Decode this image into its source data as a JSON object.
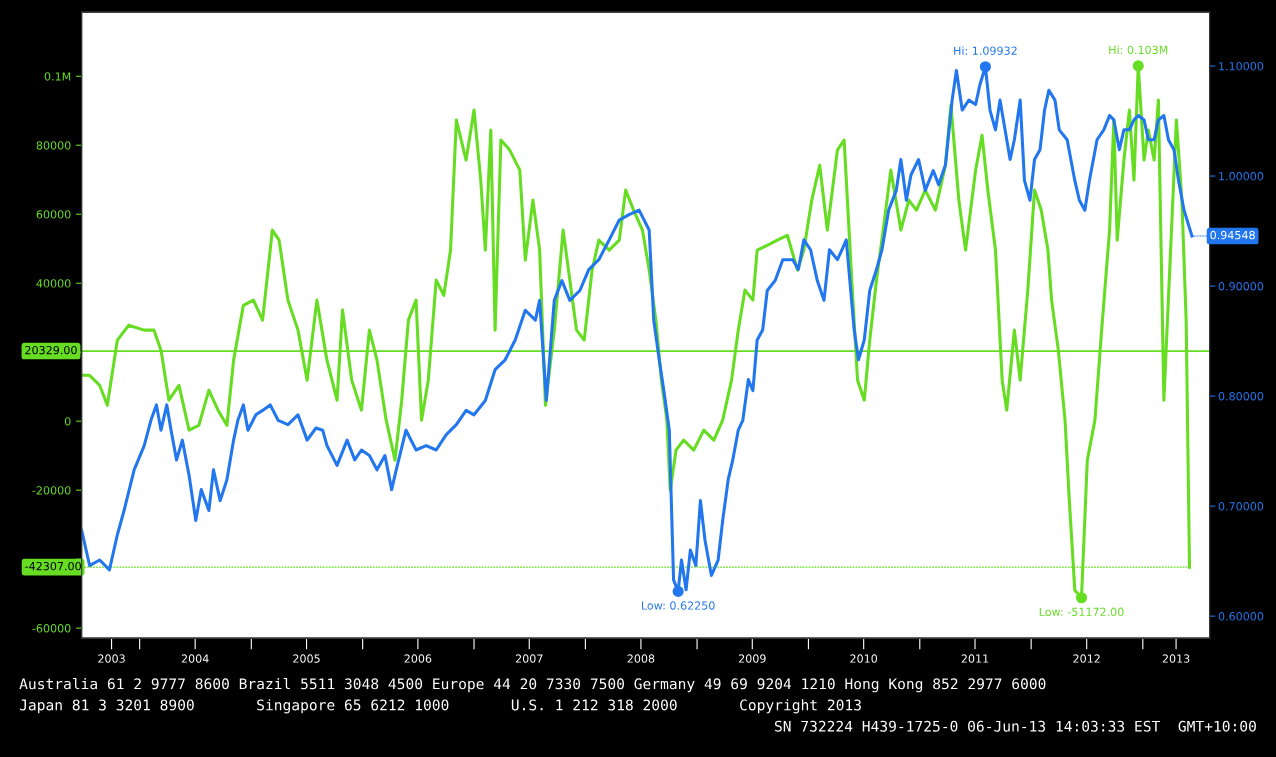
{
  "chart_data": {
    "type": "line",
    "xlim": [
      "2003-06-25",
      "2013-08-08"
    ],
    "ylim": [
      -62900,
      118600
    ],
    "y2lim": [
      0.58,
      1.149
    ],
    "xticks": [
      {
        "value": "2003-10-01",
        "label": "2003"
      },
      {
        "value": "2004-01-01",
        "label": null
      },
      {
        "value": "2004-07-01",
        "label": "2004"
      },
      {
        "value": "2005-01-01",
        "label": null
      },
      {
        "value": "2005-07-01",
        "label": "2005"
      },
      {
        "value": "2006-01-01",
        "label": null
      },
      {
        "value": "2006-07-01",
        "label": "2006"
      },
      {
        "value": "2007-01-01",
        "label": null
      },
      {
        "value": "2007-07-01",
        "label": "2007"
      },
      {
        "value": "2008-01-01",
        "label": null
      },
      {
        "value": "2008-07-01",
        "label": "2008"
      },
      {
        "value": "2009-01-01",
        "label": null
      },
      {
        "value": "2009-07-01",
        "label": "2009"
      },
      {
        "value": "2010-01-01",
        "label": null
      },
      {
        "value": "2010-07-01",
        "label": "2010"
      },
      {
        "value": "2011-01-01",
        "label": null
      },
      {
        "value": "2011-07-01",
        "label": "2011"
      },
      {
        "value": "2012-01-01",
        "label": null
      },
      {
        "value": "2012-07-01",
        "label": "2012"
      },
      {
        "value": "2013-01-01",
        "label": null
      },
      {
        "value": "2013-04-20",
        "label": "2013"
      }
    ],
    "yticks": [
      {
        "value": -60000,
        "label": "-60000"
      },
      {
        "value": -40000,
        "label": null
      },
      {
        "value": -20000,
        "label": "-20000"
      },
      0,
      {
        "value": 20000,
        "label": null
      },
      {
        "value": 40000,
        "label": "40000"
      },
      {
        "value": 60000,
        "label": "60000"
      },
      {
        "value": 80000,
        "label": "80000"
      },
      {
        "value": 100000,
        "label": "0.1M"
      }
    ],
    "y2ticks": [
      {
        "value": 0.6,
        "label": "0.60000"
      },
      {
        "value": 0.7,
        "label": "0.70000"
      },
      {
        "value": 0.8,
        "label": "0.80000"
      },
      {
        "value": 0.9,
        "label": "0.90000"
      },
      {
        "value": 1.0,
        "label": "1.00000"
      },
      {
        "value": 1.1,
        "label": "1.10000"
      }
    ],
    "series": [
      {
        "color": "#66dd22",
        "axis": "y",
        "x": [
          "2003-06-25",
          "2003-07-21",
          "2003-08-23",
          "2003-09-17",
          "2003-10-20",
          "2003-11-26",
          "2004-01-16",
          "2004-02-17",
          "2004-03-11",
          "2004-04-06",
          "2004-05-09",
          "2004-06-11",
          "2004-07-13",
          "2004-08-15",
          "2004-09-14",
          "2004-10-13",
          "2004-11-04",
          "2004-12-06",
          "2005-01-08",
          "2005-02-07",
          "2005-03-11",
          "2005-04-02",
          "2005-05-01",
          "2005-06-03",
          "2005-07-03",
          "2005-08-04",
          "2005-09-06",
          "2005-10-09",
          "2005-10-27",
          "2005-11-26",
          "2005-12-28",
          "2006-01-23",
          "2006-02-17",
          "2006-03-19",
          "2006-04-17",
          "2006-05-09",
          "2006-05-31",
          "2006-06-25",
          "2006-07-13",
          "2006-08-04",
          "2006-08-30",
          "2006-09-24",
          "2006-10-16",
          "2006-11-04",
          "2006-12-06",
          "2007-01-01",
          "2007-01-23",
          "2007-02-07",
          "2007-02-25",
          "2007-03-11",
          "2007-03-30",
          "2007-04-28",
          "2007-05-31",
          "2007-06-18",
          "2007-07-13",
          "2007-08-04",
          "2007-08-23",
          "2007-09-21",
          "2007-10-20",
          "2007-11-11",
          "2007-12-03",
          "2007-12-28",
          "2008-01-23",
          "2008-02-14",
          "2008-03-19",
          "2008-04-21",
          "2008-05-12",
          "2008-06-07",
          "2008-07-06",
          "2008-07-28",
          "2008-08-19",
          "2008-09-06",
          "2008-09-24",
          "2008-10-05",
          "2008-10-24",
          "2008-11-18",
          "2008-12-21",
          "2009-01-23",
          "2009-02-25",
          "2009-03-26",
          "2009-04-24",
          "2009-05-16",
          "2009-06-07",
          "2009-07-03",
          "2009-07-17",
          "2009-08-19",
          "2009-09-21",
          "2009-10-24",
          "2009-11-26",
          "2009-12-17",
          "2010-01-12",
          "2010-02-07",
          "2010-03-04",
          "2010-04-06",
          "2010-04-28",
          "2010-05-23",
          "2010-06-11",
          "2010-07-03",
          "2010-07-21",
          "2010-08-12",
          "2010-09-03",
          "2010-09-28",
          "2010-10-31",
          "2010-11-26",
          "2010-12-21",
          "2011-01-19",
          "2011-02-21",
          "2011-03-26",
          "2011-04-13",
          "2011-05-09",
          "2011-05-31",
          "2011-07-03",
          "2011-07-24",
          "2011-08-12",
          "2011-09-06",
          "2011-09-28",
          "2011-10-13",
          "2011-11-07",
          "2011-11-26",
          "2011-12-21",
          "2012-01-12",
          "2012-02-03",
          "2012-02-25",
          "2012-03-08",
          "2012-03-30",
          "2012-04-21",
          "2012-05-05",
          "2012-05-23",
          "2012-06-14",
          "2012-07-03",
          "2012-07-28",
          "2012-08-19",
          "2012-09-14",
          "2012-09-28",
          "2012-10-09",
          "2012-10-31",
          "2012-11-18",
          "2012-12-03",
          "2012-12-17",
          "2013-01-05",
          "2013-01-19",
          "2013-02-07",
          "2013-02-21",
          "2013-03-11",
          "2013-04-02",
          "2013-04-21",
          "2013-05-09",
          "2013-05-23",
          "2013-06-03"
        ],
        "values": [
          13300,
          13300,
          10400,
          4600,
          23500,
          27800,
          26400,
          26400,
          20600,
          6100,
          10400,
          -2600,
          -1200,
          9000,
          3200,
          -1200,
          17700,
          33600,
          35100,
          29300,
          55400,
          52500,
          35100,
          26400,
          11900,
          35100,
          17700,
          6100,
          32200,
          11900,
          3200,
          26400,
          17700,
          300,
          -11300,
          6100,
          29300,
          35100,
          300,
          11900,
          40900,
          36500,
          49600,
          87300,
          75700,
          90200,
          69900,
          49600,
          84400,
          26400,
          81500,
          78600,
          72800,
          46700,
          64100,
          49600,
          4600,
          26400,
          55400,
          40900,
          26400,
          23500,
          43800,
          52500,
          49600,
          52500,
          67000,
          61200,
          55400,
          43800,
          29300,
          11900,
          300,
          -20000,
          -8400,
          -5500,
          -8400,
          -2600,
          -5500,
          300,
          11900,
          26400,
          38000,
          35100,
          49600,
          51000,
          52500,
          53900,
          43800,
          49600,
          64100,
          74200,
          55400,
          78600,
          81500,
          40900,
          11900,
          6100,
          23500,
          40900,
          55400,
          72800,
          55400,
          64100,
          61200,
          67000,
          61200,
          74200,
          91600,
          64100,
          49600,
          72800,
          82900,
          67000,
          49600,
          11900,
          3200,
          26400,
          11900,
          38000,
          67000,
          61200,
          49600,
          35100,
          20600,
          300,
          -22900,
          -49000,
          -51172,
          -11300,
          300,
          26400,
          55400,
          87300,
          52500,
          75700,
          90200,
          69900,
          103000,
          75700,
          84400,
          75700,
          93100,
          6100,
          49600,
          87300,
          64100,
          29300,
          -42307
        ],
        "value_labels": [
          null,
          null,
          null,
          null,
          null,
          null,
          null,
          null,
          null,
          null,
          null,
          null,
          null,
          null,
          null,
          null,
          null,
          null,
          null,
          null,
          null,
          null,
          null,
          null,
          null,
          null,
          null,
          null,
          null,
          null,
          null,
          null,
          null,
          null,
          null,
          null,
          null,
          null,
          null,
          null,
          null,
          null,
          null,
          null,
          null,
          null,
          null,
          null,
          null,
          null,
          null,
          null,
          null,
          null,
          null,
          null,
          null,
          null,
          null,
          null,
          null,
          null,
          null,
          null,
          null,
          null,
          null,
          null,
          null,
          null,
          null,
          null,
          null,
          null,
          null,
          null,
          null,
          null,
          null,
          null,
          null,
          null,
          null,
          null,
          null,
          null,
          null,
          null,
          null,
          null,
          null,
          null,
          null,
          null,
          null,
          null,
          null,
          null,
          null,
          null,
          null,
          null,
          null,
          null,
          null,
          null,
          null,
          null,
          null,
          null,
          null,
          null,
          null,
          null,
          null,
          null,
          null,
          null,
          null,
          null,
          null,
          null,
          null,
          null,
          null,
          null,
          null,
          null,
          "Low: -51172.00",
          null,
          null,
          null,
          null,
          null,
          null,
          null,
          null,
          null,
          "Hi: 0.103M",
          null,
          null,
          null,
          null,
          null,
          null,
          null,
          null,
          null,
          "-42307.00"
        ]
      },
      {
        "color": "#2277ee",
        "axis": "y2",
        "x": [
          "2003-06-25",
          "2003-07-21",
          "2003-08-23",
          "2003-09-24",
          "2003-10-20",
          "2003-11-11",
          "2003-12-14",
          "2004-01-16",
          "2004-02-07",
          "2004-02-25",
          "2004-03-11",
          "2004-03-30",
          "2004-04-13",
          "2004-05-01",
          "2004-05-20",
          "2004-06-11",
          "2004-07-03",
          "2004-07-21",
          "2004-08-15",
          "2004-08-30",
          "2004-09-21",
          "2004-10-13",
          "2004-11-04",
          "2004-11-18",
          "2004-12-06",
          "2004-12-21",
          "2005-01-16",
          "2005-02-07",
          "2005-03-04",
          "2005-03-30",
          "2005-05-01",
          "2005-06-03",
          "2005-07-03",
          "2005-08-01",
          "2005-08-23",
          "2005-09-06",
          "2005-10-09",
          "2005-11-11",
          "2005-12-06",
          "2005-12-28",
          "2006-01-23",
          "2006-02-17",
          "2006-03-15",
          "2006-04-06",
          "2006-04-21",
          "2006-05-23",
          "2006-06-25",
          "2006-07-28",
          "2006-08-30",
          "2006-10-02",
          "2006-11-04",
          "2006-12-06",
          "2007-01-01",
          "2007-02-07",
          "2007-03-11",
          "2007-04-13",
          "2007-05-16",
          "2007-06-18",
          "2007-07-21",
          "2007-08-04",
          "2007-08-26",
          "2007-09-21",
          "2007-10-16",
          "2007-11-11",
          "2007-12-14",
          "2008-01-12",
          "2008-02-14",
          "2008-03-19",
          "2008-04-21",
          "2008-05-23",
          "2008-06-25",
          "2008-07-28",
          "2008-08-12",
          "2008-08-30",
          "2008-09-14",
          "2008-10-02",
          "2008-10-16",
          "2008-10-31",
          "2008-11-11",
          "2008-11-26",
          "2008-12-10",
          "2008-12-28",
          "2009-01-12",
          "2009-01-27",
          "2009-02-17",
          "2009-03-11",
          "2009-03-26",
          "2009-04-13",
          "2009-04-28",
          "2009-05-16",
          "2009-05-31",
          "2009-06-18",
          "2009-07-03",
          "2009-07-17",
          "2009-08-04",
          "2009-08-19",
          "2009-09-14",
          "2009-10-09",
          "2009-11-11",
          "2009-11-29",
          "2009-12-17",
          "2010-01-08",
          "2010-01-30",
          "2010-02-21",
          "2010-03-11",
          "2010-04-06",
          "2010-04-21",
          "2010-05-05",
          "2010-05-31",
          "2010-06-14",
          "2010-07-03",
          "2010-07-21",
          "2010-08-12",
          "2010-08-30",
          "2010-09-21",
          "2010-10-16",
          "2010-10-31",
          "2010-11-18",
          "2010-12-03",
          "2010-12-28",
          "2011-01-19",
          "2011-02-14",
          "2011-03-04",
          "2011-03-26",
          "2011-04-17",
          "2011-05-01",
          "2011-05-20",
          "2011-06-11",
          "2011-07-03",
          "2011-07-17",
          "2011-08-04",
          "2011-08-19",
          "2011-09-06",
          "2011-09-21",
          "2011-10-24",
          "2011-11-07",
          "2011-11-26",
          "2011-12-10",
          "2011-12-28",
          "2012-01-12",
          "2012-01-30",
          "2012-02-14",
          "2012-02-28",
          "2012-03-19",
          "2012-04-02",
          "2012-04-28",
          "2012-05-23",
          "2012-06-07",
          "2012-06-25",
          "2012-07-10",
          "2012-08-04",
          "2012-08-26",
          "2012-09-14",
          "2012-09-28",
          "2012-10-16",
          "2012-10-31",
          "2012-11-18",
          "2012-12-03",
          "2012-12-17",
          "2013-01-05",
          "2013-01-19",
          "2013-02-07",
          "2013-02-21",
          "2013-03-11",
          "2013-03-26",
          "2013-04-13",
          "2013-04-28",
          "2013-05-16",
          "2013-06-11"
        ],
        "values": [
          0.678,
          0.646,
          0.651,
          0.642,
          0.674,
          0.696,
          0.733,
          0.755,
          0.778,
          0.792,
          0.769,
          0.792,
          0.769,
          0.742,
          0.76,
          0.728,
          0.687,
          0.715,
          0.696,
          0.733,
          0.705,
          0.724,
          0.76,
          0.778,
          0.792,
          0.769,
          0.783,
          0.787,
          0.792,
          0.778,
          0.774,
          0.783,
          0.76,
          0.771,
          0.769,
          0.755,
          0.737,
          0.76,
          0.742,
          0.751,
          0.746,
          0.733,
          0.746,
          0.715,
          0.733,
          0.769,
          0.751,
          0.755,
          0.751,
          0.765,
          0.774,
          0.787,
          0.783,
          0.796,
          0.824,
          0.833,
          0.851,
          0.878,
          0.869,
          0.887,
          0.796,
          0.887,
          0.905,
          0.887,
          0.896,
          0.915,
          0.924,
          0.942,
          0.96,
          0.965,
          0.969,
          0.951,
          0.869,
          0.833,
          0.805,
          0.769,
          0.633,
          0.6225,
          0.651,
          0.624,
          0.66,
          0.646,
          0.705,
          0.669,
          0.637,
          0.651,
          0.687,
          0.724,
          0.742,
          0.769,
          0.778,
          0.815,
          0.805,
          0.851,
          0.86,
          0.896,
          0.905,
          0.924,
          0.924,
          0.915,
          0.942,
          0.933,
          0.905,
          0.887,
          0.933,
          0.924,
          0.933,
          0.942,
          0.86,
          0.833,
          0.851,
          0.896,
          0.915,
          0.933,
          0.969,
          0.987,
          1.015,
          0.978,
          1.001,
          1.015,
          0.987,
          1.005,
          0.992,
          1.01,
          1.069,
          1.096,
          1.06,
          1.069,
          1.065,
          1.083,
          1.09932,
          1.06,
          1.042,
          1.069,
          1.015,
          1.033,
          1.069,
          0.996,
          0.978,
          1.015,
          1.024,
          1.06,
          1.078,
          1.069,
          1.042,
          1.033,
          0.996,
          0.978,
          0.969,
          0.996,
          1.033,
          1.042,
          1.055,
          1.051,
          1.024,
          1.042,
          1.042,
          1.051,
          1.055,
          1.051,
          1.033,
          1.033,
          1.051,
          1.055,
          1.033,
          1.024,
          0.996,
          0.969,
          0.94548
        ],
        "value_labels": [
          null,
          null,
          null,
          null,
          null,
          null,
          null,
          null,
          null,
          null,
          null,
          null,
          null,
          null,
          null,
          null,
          null,
          null,
          null,
          null,
          null,
          null,
          null,
          null,
          null,
          null,
          null,
          null,
          null,
          null,
          null,
          null,
          null,
          null,
          null,
          null,
          null,
          null,
          null,
          null,
          null,
          null,
          null,
          null,
          null,
          null,
          null,
          null,
          null,
          null,
          null,
          null,
          null,
          null,
          null,
          null,
          null,
          null,
          null,
          null,
          null,
          null,
          null,
          null,
          null,
          null,
          null,
          null,
          null,
          null,
          null,
          null,
          null,
          null,
          null,
          null,
          null,
          "Low: 0.62250",
          null,
          null,
          null,
          null,
          null,
          null,
          null,
          null,
          null,
          null,
          null,
          null,
          null,
          null,
          null,
          null,
          null,
          null,
          null,
          null,
          null,
          null,
          null,
          null,
          null,
          null,
          null,
          null,
          null,
          null,
          null,
          null,
          null,
          null,
          null,
          null,
          null,
          null,
          null,
          null,
          null,
          null,
          null,
          null,
          null,
          null,
          null,
          null,
          null,
          null,
          null,
          null,
          "Hi: 1.09932",
          null,
          null,
          null,
          null,
          null,
          null,
          null,
          null,
          null,
          null,
          null,
          null,
          null,
          null,
          null,
          null,
          null,
          null,
          null,
          null,
          null,
          null,
          null,
          null,
          null,
          null,
          null,
          null,
          null,
          null,
          null,
          null,
          null,
          null,
          null,
          null,
          null,
          "0.94548"
        ]
      }
    ],
    "ref_lines": [
      {
        "axis": "y",
        "value": 20329,
        "label": "20329.00",
        "color": "#66dd22"
      }
    ],
    "annotations": [
      "Australia 61 2 9777 8600 Brazil 5511 3048 4500 Europe 44 20 7330 7500 Germany 49 69 9204 1210 Hong Kong 852 2977 6000",
      "Japan 81 3 3201 8900       Singapore 65 6212 1000       U.S. 1 212 318 2000       Copyright 2013",
      "SN 732224 H439-1725-0 06-Jun-13 14:03:33 EST  GMT+10:00"
    ]
  }
}
